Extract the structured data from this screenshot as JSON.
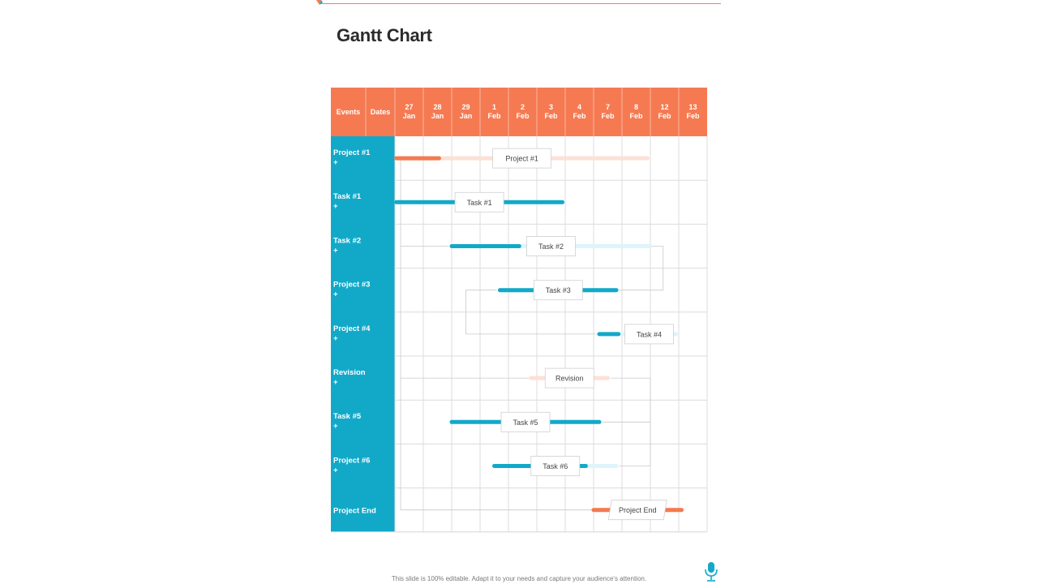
{
  "title": "Gantt Chart",
  "footer": "This slide is 100% editable. Adapt it to your needs and capture your audience's attention.",
  "colors": {
    "header": "#f57a52",
    "rowlabel": "#12a9c9",
    "orange": "#f47a50",
    "orange_light": "#fde0d6",
    "teal": "#12a9c9",
    "teal_light": "#dff4fb",
    "grid": "#dcdcdc",
    "connector": "#c9c9c9"
  },
  "chart_data": {
    "type": "gantt",
    "header": {
      "events": "Events",
      "dates": "Dates"
    },
    "columns": [
      {
        "day": "27",
        "month": "Jan"
      },
      {
        "day": "28",
        "month": "Jan"
      },
      {
        "day": "29",
        "month": "Jan"
      },
      {
        "day": "1",
        "month": "Feb"
      },
      {
        "day": "2",
        "month": "Feb"
      },
      {
        "day": "3",
        "month": "Feb"
      },
      {
        "day": "4",
        "month": "Feb"
      },
      {
        "day": "7",
        "month": "Feb"
      },
      {
        "day": "8",
        "month": "Feb"
      },
      {
        "day": "12",
        "month": "Feb"
      },
      {
        "day": "13",
        "month": "Feb"
      }
    ],
    "rows": [
      {
        "label": "Project #1",
        "plus": "+",
        "bar_label": "Project #1",
        "color": "orange",
        "start": 0.05,
        "end": 8.9,
        "progress": 0.17
      },
      {
        "label": "Task #1",
        "plus": "+",
        "bar_label": "Task #1",
        "color": "teal",
        "start": 0.05,
        "end": 5.9,
        "progress": 1.0
      },
      {
        "label": "Task #2",
        "plus": "+",
        "bar_label": "Task #2",
        "color": "teal",
        "start": 2.0,
        "end": 9.0,
        "progress": 0.34
      },
      {
        "label": "Project #3",
        "plus": "+",
        "bar_label": "Task #3",
        "color": "teal",
        "start": 3.7,
        "end": 7.8,
        "progress": 1.0
      },
      {
        "label": "Project #4",
        "plus": "+",
        "bar_label": "Task #4",
        "color": "teal",
        "start": 7.2,
        "end": 9.9,
        "progress": 0.25
      },
      {
        "label": "Revision",
        "plus": "+",
        "bar_label": "Revision",
        "color": "orange",
        "start": 4.8,
        "end": 7.5,
        "progress": 0.0
      },
      {
        "label": "Task #5",
        "plus": "+",
        "bar_label": "Task #5",
        "color": "teal",
        "start": 2.0,
        "end": 7.2,
        "progress": 1.0
      },
      {
        "label": "Project #6",
        "plus": "+",
        "bar_label": "Task #6",
        "color": "teal",
        "start": 3.5,
        "end": 7.8,
        "progress": 0.75
      },
      {
        "label": "Project End",
        "plus": "",
        "bar_label": "Project End",
        "color": "orange",
        "start": 7.0,
        "end": 10.1,
        "progress": 1.0
      }
    ]
  }
}
